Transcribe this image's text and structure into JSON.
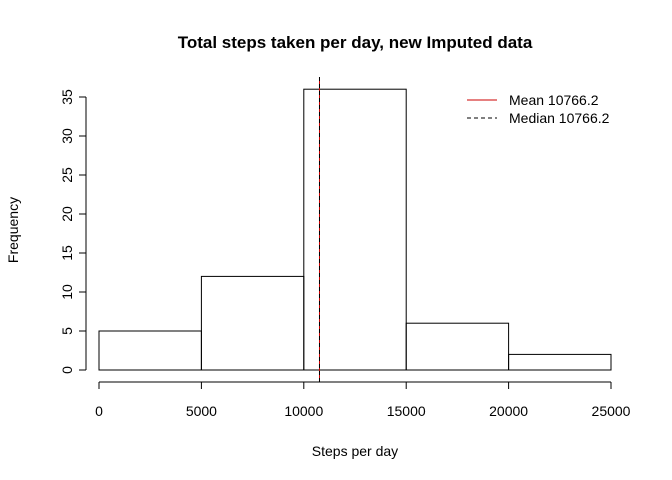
{
  "chart_data": {
    "type": "bar",
    "title": "Total steps taken per day, new Imputed data",
    "xlabel": "Steps per day",
    "ylabel": "Frequency",
    "bins": [
      {
        "x0": 0,
        "x1": 5000,
        "count": 5
      },
      {
        "x0": 5000,
        "x1": 10000,
        "count": 12
      },
      {
        "x0": 10000,
        "x1": 15000,
        "count": 36
      },
      {
        "x0": 15000,
        "x1": 20000,
        "count": 6
      },
      {
        "x0": 20000,
        "x1": 25000,
        "count": 2
      }
    ],
    "xlim": [
      0,
      25000
    ],
    "ylim": [
      0,
      35
    ],
    "x_ticks": [
      0,
      5000,
      10000,
      15000,
      20000,
      25000
    ],
    "y_ticks": [
      0,
      5,
      10,
      15,
      20,
      25,
      30,
      35
    ],
    "grid": false,
    "reference_lines": [
      {
        "name": "Mean 10766.2",
        "value": 10766.2,
        "color": "#cc0000",
        "style": "solid"
      },
      {
        "name": "Median 10766.2",
        "value": 10766.2,
        "color": "#000000",
        "style": "dashed"
      }
    ],
    "legend_placement": "top-right"
  }
}
